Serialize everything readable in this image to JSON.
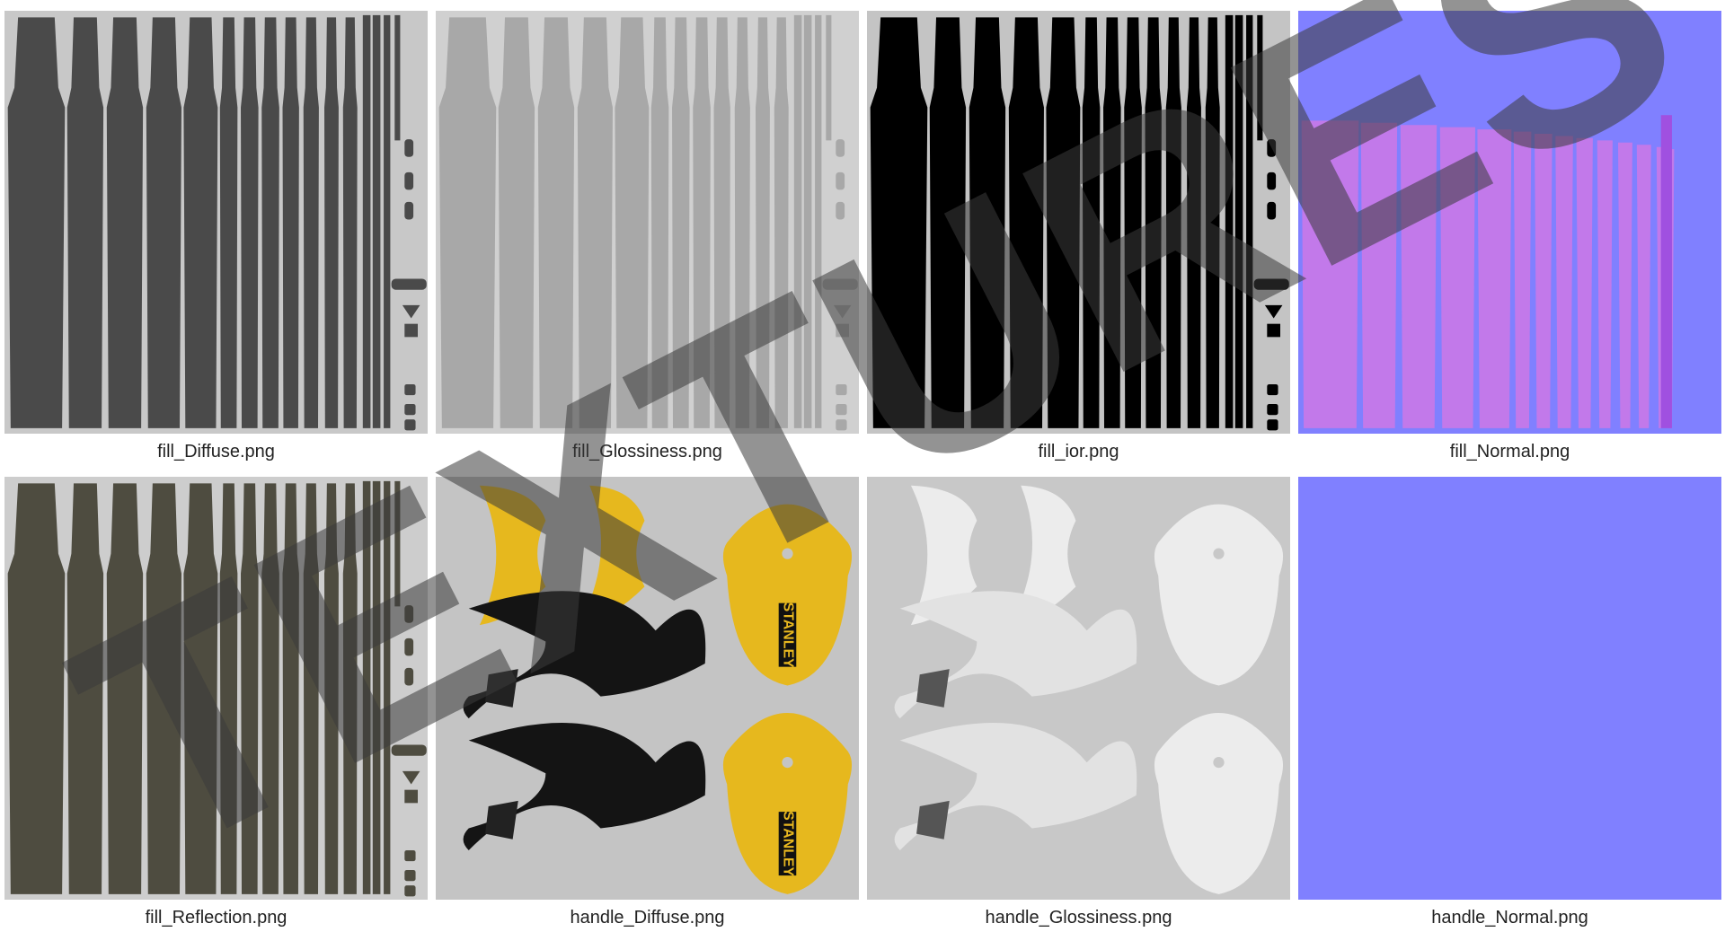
{
  "tiles": [
    {
      "caption": "fill_Diffuse.png"
    },
    {
      "caption": "fill_Glossiness.png"
    },
    {
      "caption": "fill_ior.png"
    },
    {
      "caption": "fill_Normal.png"
    },
    {
      "caption": "fill_Reflection.png"
    },
    {
      "caption": "handle_Diffuse.png"
    },
    {
      "caption": "handle_Glossiness.png"
    },
    {
      "caption": "handle_Normal.png"
    }
  ],
  "brand": "STANLEY",
  "watermark": "TEXTURES"
}
